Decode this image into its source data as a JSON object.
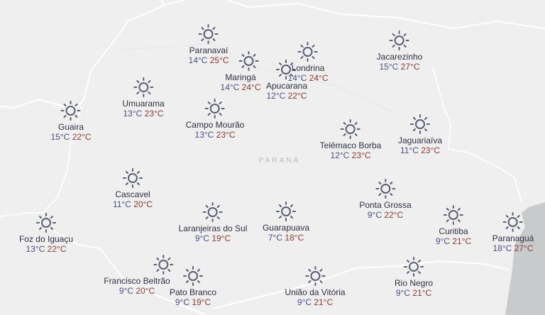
{
  "region_label": "PARANÁ",
  "colors": {
    "land": "#efeff0",
    "sea": "#c9cacc",
    "border": "#ffffff",
    "icon": "#5b5f74",
    "min_temp": "#4b4f86",
    "max_temp": "#8a3b36"
  },
  "cities": [
    {
      "name": "Paranavaí",
      "min": "14°C",
      "max": "25°C",
      "icon": "sun-icon"
    },
    {
      "name": "Maringá",
      "min": "14°C",
      "max": "24°C",
      "icon": "sun-icon"
    },
    {
      "name": "Londrina",
      "min": "14°C",
      "max": "24°C",
      "icon": "sun-icon"
    },
    {
      "name": "Apucarana",
      "min": "12°C",
      "max": "22°C",
      "icon": "sun-icon"
    },
    {
      "name": "Jacarezinho",
      "min": "15°C",
      "max": "27°C",
      "icon": "sun-icon"
    },
    {
      "name": "Umuarama",
      "min": "13°C",
      "max": "23°C",
      "icon": "sun-icon"
    },
    {
      "name": "Guaira",
      "min": "15°C",
      "max": "22°C",
      "icon": "sun-icon"
    },
    {
      "name": "Campo Mourão",
      "min": "13°C",
      "max": "23°C",
      "icon": "sun-icon"
    },
    {
      "name": "Telêmaco Borba",
      "min": "12°C",
      "max": "23°C",
      "icon": "sun-icon"
    },
    {
      "name": "Jaguariaíva",
      "min": "11°C",
      "max": "23°C",
      "icon": "sun-icon"
    },
    {
      "name": "Cascavel",
      "min": "11°C",
      "max": "20°C",
      "icon": "sun-icon"
    },
    {
      "name": "Ponta Grossa",
      "min": "9°C",
      "max": "22°C",
      "icon": "sun-icon"
    },
    {
      "name": "Laranjeiras do Sul",
      "min": "9°C",
      "max": "19°C",
      "icon": "sun-icon"
    },
    {
      "name": "Guarapuava",
      "min": "7°C",
      "max": "18°C",
      "icon": "sun-icon"
    },
    {
      "name": "Curitiba",
      "min": "9°C",
      "max": "21°C",
      "icon": "sun-icon"
    },
    {
      "name": "Paranaguá",
      "min": "18°C",
      "max": "27°C",
      "icon": "sun-icon"
    },
    {
      "name": "Foz do Iguaçu",
      "min": "13°C",
      "max": "22°C",
      "icon": "sun-icon"
    },
    {
      "name": "Francisco Beltrão",
      "min": "9°C",
      "max": "20°C",
      "icon": "sun-icon"
    },
    {
      "name": "Pato Branco",
      "min": "9°C",
      "max": "19°C",
      "icon": "sun-icon"
    },
    {
      "name": "União da Vitória",
      "min": "9°C",
      "max": "21°C",
      "icon": "sun-icon"
    },
    {
      "name": "Rio Negro",
      "min": "9°C",
      "max": "21°C",
      "icon": "sun-icon"
    }
  ]
}
